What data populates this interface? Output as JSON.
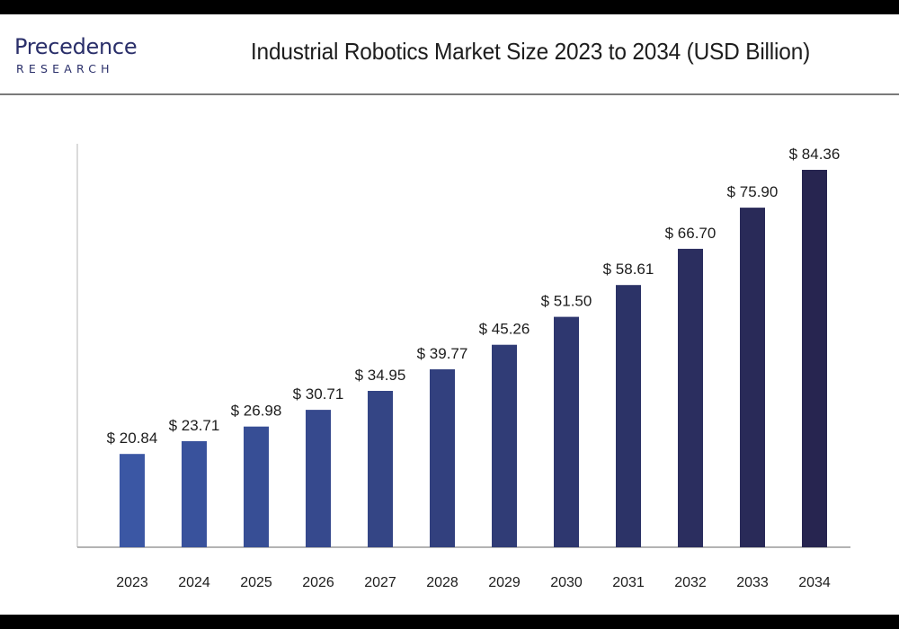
{
  "logo": {
    "line1": "Precedence",
    "line2": "RESEARCH"
  },
  "chart_data": {
    "type": "bar",
    "title": "Industrial Robotics Market Size 2023 to 2034 (USD Billion)",
    "xlabel": "",
    "ylabel": "",
    "categories": [
      "2023",
      "2024",
      "2025",
      "2026",
      "2027",
      "2028",
      "2029",
      "2030",
      "2031",
      "2032",
      "2033",
      "2034"
    ],
    "values": [
      20.84,
      23.71,
      26.98,
      30.71,
      34.95,
      39.77,
      45.26,
      51.5,
      58.61,
      66.7,
      75.9,
      84.36
    ],
    "value_labels": [
      "$ 20.84",
      "$ 23.71",
      "$ 26.98",
      "$ 30.71",
      "$ 34.95",
      "$ 39.77",
      "$ 45.26",
      "$ 51.50",
      "$ 58.61",
      "$ 66.70",
      "$ 75.90",
      "$ 84.36"
    ],
    "ylim": [
      0,
      90
    ],
    "grid": false,
    "legend": "none",
    "colors": {
      "light": "#3b57a4",
      "dark": "#272550"
    }
  }
}
